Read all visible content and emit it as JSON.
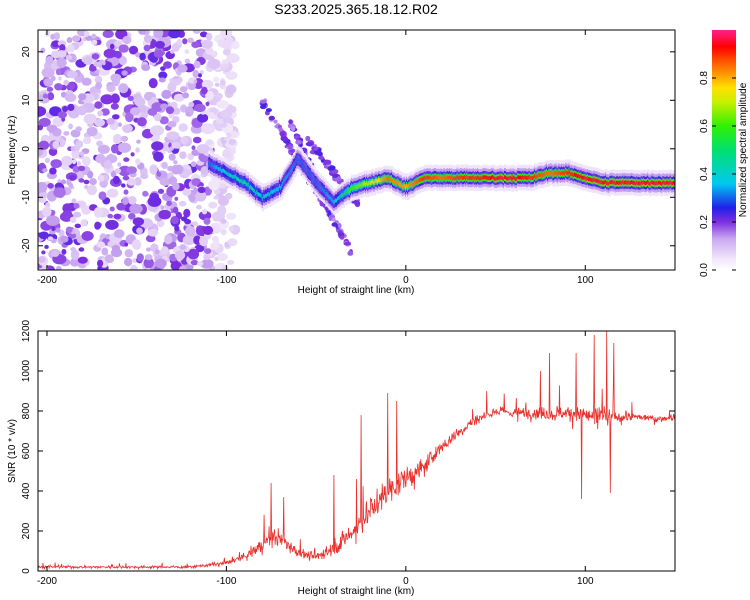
{
  "title": "S233.2025.365.18.12.R02",
  "chart_data": [
    {
      "type": "heatmap",
      "xlabel": "Height of straight line (km)",
      "ylabel": "Frequency (Hz)",
      "xlim": [
        -205,
        150
      ],
      "ylim": [
        -25,
        24.5
      ],
      "xticks": [
        -200,
        -100,
        0,
        100
      ],
      "yticks": [
        -20,
        -10,
        0,
        10,
        20
      ],
      "ridge": {
        "x": [
          -110,
          -100,
          -90,
          -80,
          -70,
          -60,
          -50,
          -40,
          -30,
          -20,
          -10,
          0,
          10,
          20,
          30,
          40,
          50,
          60,
          70,
          80,
          90,
          100,
          110,
          120,
          130,
          140,
          150
        ],
        "freq": [
          -3,
          -5,
          -7,
          -10,
          -8,
          -2,
          -7,
          -11,
          -8,
          -7,
          -6,
          -8,
          -6,
          -6,
          -6,
          -6,
          -6,
          -6,
          -6,
          -5,
          -5,
          -6,
          -7,
          -7,
          -7,
          -7,
          -7
        ],
        "amplitude": [
          0.3,
          0.4,
          0.45,
          0.4,
          0.35,
          0.3,
          0.3,
          0.35,
          0.6,
          0.7,
          0.85,
          0.8,
          0.9,
          0.85,
          0.9,
          0.9,
          0.95,
          0.95,
          0.9,
          0.85,
          0.9,
          0.95,
          0.95,
          0.95,
          0.95,
          0.95,
          0.95
        ]
      },
      "colorbar": {
        "label": "Normalized spectral amplitude",
        "range": [
          0.0,
          1.0
        ],
        "ticks": [
          0.0,
          0.2,
          0.4,
          0.6,
          0.8
        ],
        "tick_labels": [
          "0.0",
          "0.2",
          "0.4",
          "0.6",
          "0.8"
        ]
      }
    },
    {
      "type": "line",
      "xlabel": "Height of straight line (km)",
      "ylabel": "SNR (10 * v/v)",
      "xlim": [
        -205,
        150
      ],
      "ylim": [
        0,
        1200
      ],
      "xticks": [
        -200,
        -100,
        0,
        100
      ],
      "yticks": [
        0,
        200,
        400,
        600,
        800,
        1000,
        1200
      ],
      "color": "#e8302c",
      "envelope": {
        "x": [
          -205,
          -120,
          -100,
          -90,
          -80,
          -75,
          -70,
          -60,
          -50,
          -40,
          -30,
          -20,
          -10,
          0,
          10,
          20,
          30,
          40,
          50,
          60,
          70,
          80,
          90,
          100,
          110,
          120,
          130,
          140,
          150
        ],
        "mean": [
          20,
          20,
          40,
          70,
          130,
          170,
          160,
          90,
          70,
          120,
          190,
          300,
          400,
          460,
          520,
          620,
          700,
          760,
          800,
          790,
          790,
          790,
          790,
          780,
          760,
          770,
          770,
          760,
          770
        ],
        "noise": [
          15,
          15,
          25,
          40,
          90,
          110,
          100,
          60,
          50,
          100,
          140,
          170,
          160,
          130,
          110,
          90,
          70,
          60,
          60,
          60,
          70,
          80,
          90,
          100,
          140,
          60,
          40,
          40,
          40
        ]
      },
      "spikes": [
        {
          "x": -75,
          "y": 440
        },
        {
          "x": -68,
          "y": 370
        },
        {
          "x": -40,
          "y": 480
        },
        {
          "x": -25,
          "y": 780
        },
        {
          "x": -10,
          "y": 890
        },
        {
          "x": -5,
          "y": 850
        },
        {
          "x": 45,
          "y": 900
        },
        {
          "x": 75,
          "y": 1000
        },
        {
          "x": 80,
          "y": 1090
        },
        {
          "x": 95,
          "y": 1090
        },
        {
          "x": 98,
          "y": 360
        },
        {
          "x": 105,
          "y": 1180
        },
        {
          "x": 112,
          "y": 1200
        },
        {
          "x": 116,
          "y": 1140
        },
        {
          "x": 114,
          "y": 390
        }
      ]
    }
  ]
}
